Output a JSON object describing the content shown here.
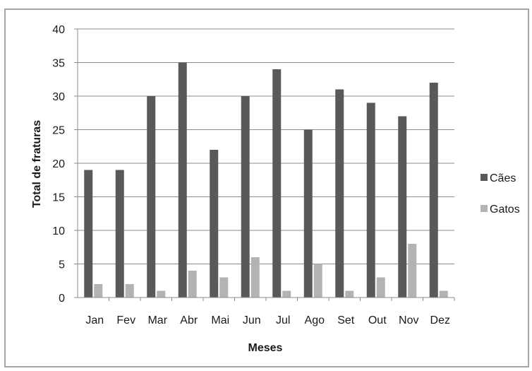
{
  "chart_data": {
    "type": "bar",
    "categories": [
      "Jan",
      "Fev",
      "Mar",
      "Abr",
      "Mai",
      "Jun",
      "Jul",
      "Ago",
      "Set",
      "Out",
      "Nov",
      "Dez"
    ],
    "series": [
      {
        "name": "Cães",
        "values": [
          19,
          19,
          30,
          35,
          22,
          30,
          34,
          25,
          31,
          29,
          27,
          32
        ],
        "color": "#595959"
      },
      {
        "name": "Gatos",
        "values": [
          2,
          2,
          1,
          4,
          3,
          6,
          1,
          5,
          1,
          3,
          8,
          1
        ],
        "color": "#b3b3b3"
      }
    ],
    "title": "",
    "xlabel": "Meses",
    "ylabel": "Total de fraturas",
    "ylim": [
      0,
      40
    ],
    "yticks": [
      0,
      5,
      10,
      15,
      20,
      25,
      30,
      35,
      40
    ],
    "grid": true,
    "legend_position": "right"
  }
}
